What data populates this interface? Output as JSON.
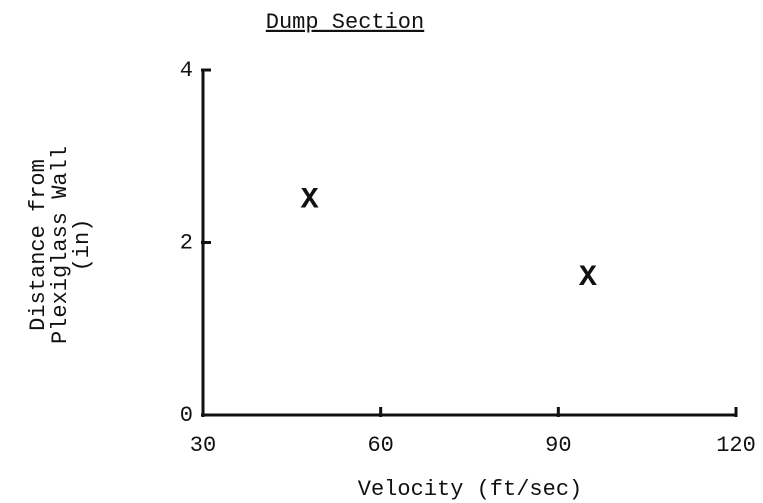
{
  "chart_data": {
    "type": "scatter",
    "title": "Dump Section",
    "xlabel": "Velocity (ft/sec)",
    "ylabel": [
      "Distance from",
      "Plexiglass Wall",
      "(in)"
    ],
    "marker": "X",
    "color": "#111111",
    "x": [
      48,
      95
    ],
    "values": [
      2.5,
      1.6
    ],
    "xlim": [
      30,
      120
    ],
    "xticks": [
      30,
      60,
      90,
      120
    ],
    "ylim": [
      0,
      4
    ],
    "yticks": [
      0,
      2,
      4
    ],
    "grid": false
  }
}
